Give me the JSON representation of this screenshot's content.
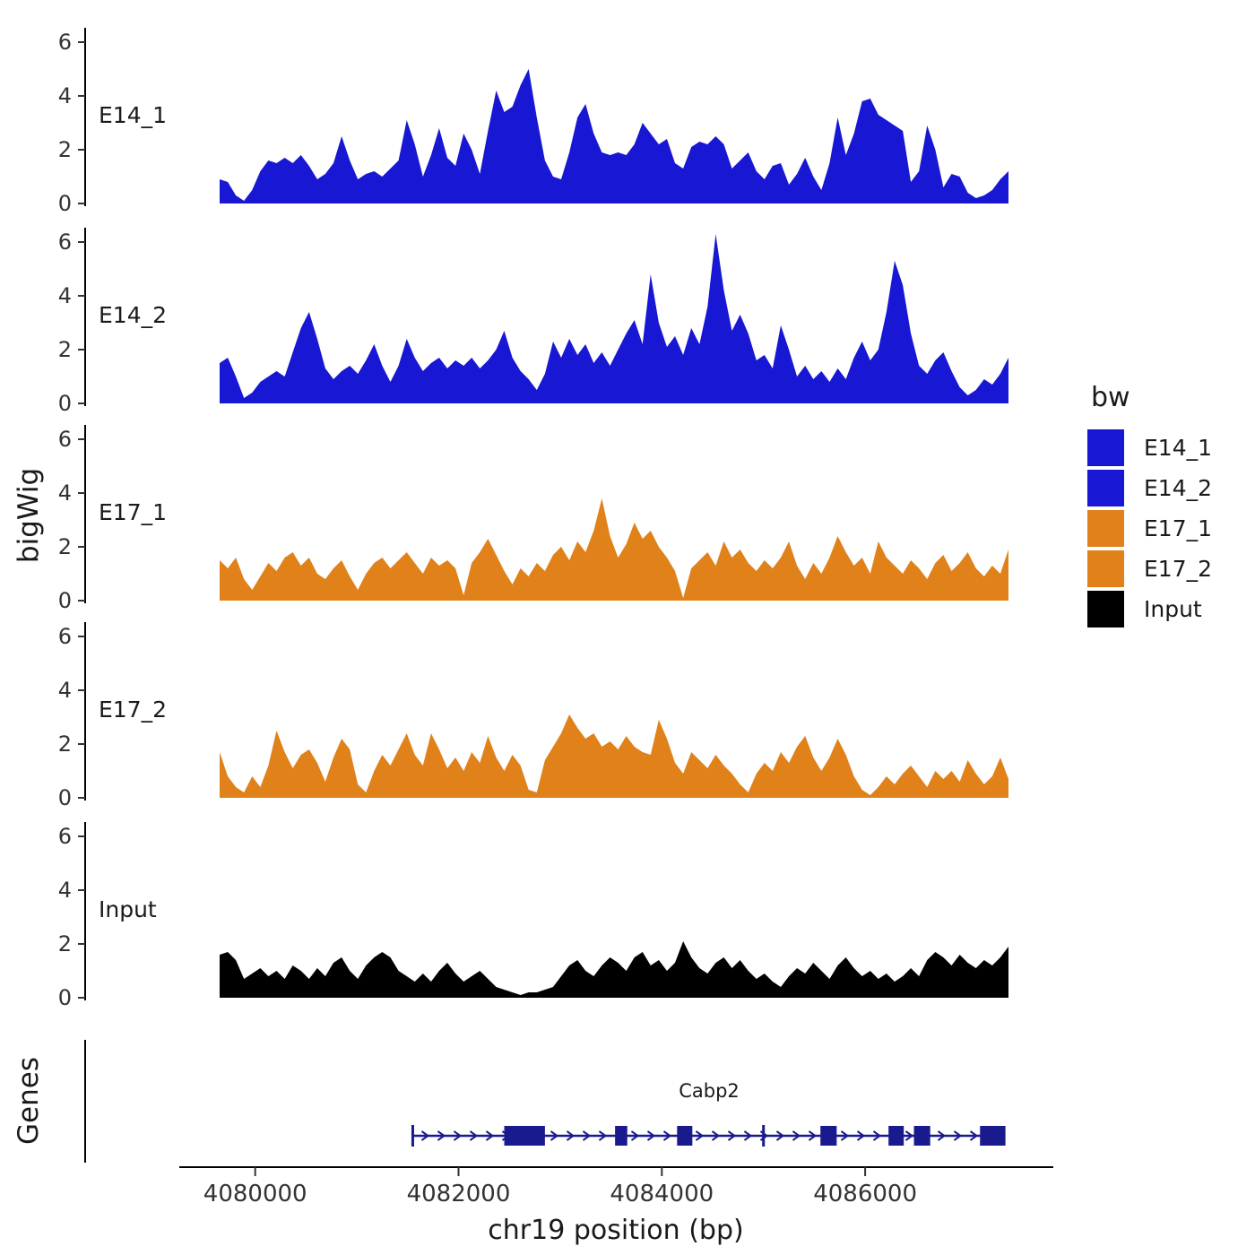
{
  "figure": {
    "background": "#ffffff",
    "colors": {
      "blue": "#1717d4",
      "orange": "#e0811a",
      "black": "#000000",
      "gene": "#1a1a8f",
      "axis": "#000000",
      "tick_text": "#333333"
    }
  },
  "chart_data": {
    "type": "area",
    "title": "",
    "xlabel": "chr19 position (bp)",
    "ylabel": "bigWig",
    "genes_label": "Genes",
    "x_start": 4079650,
    "x_step": 80,
    "x_ticks": [
      4080000,
      4082000,
      4084000,
      4086000
    ],
    "y_ticks": [
      0,
      2,
      4,
      6
    ],
    "ylim": [
      0,
      6.5
    ],
    "legend": {
      "title": "bw",
      "entries": [
        {
          "label": "E14_1",
          "color": "#1717d4"
        },
        {
          "label": "E14_2",
          "color": "#1717d4"
        },
        {
          "label": "E17_1",
          "color": "#e0811a"
        },
        {
          "label": "E17_2",
          "color": "#e0811a"
        },
        {
          "label": "Input",
          "color": "#000000"
        }
      ]
    },
    "series": [
      {
        "name": "E14_1",
        "color": "#1717d4",
        "values": [
          0.9,
          0.8,
          0.3,
          0.1,
          0.5,
          1.2,
          1.6,
          1.5,
          1.7,
          1.5,
          1.8,
          1.4,
          0.9,
          1.1,
          1.5,
          2.5,
          1.6,
          0.9,
          1.1,
          1.2,
          1.0,
          1.3,
          1.6,
          3.1,
          2.2,
          1.0,
          1.8,
          2.8,
          1.7,
          1.4,
          2.6,
          2.0,
          1.1,
          2.7,
          4.2,
          3.4,
          3.6,
          4.4,
          5.0,
          3.2,
          1.6,
          1.0,
          0.9,
          1.9,
          3.2,
          3.7,
          2.6,
          1.9,
          1.8,
          1.9,
          1.8,
          2.2,
          3.0,
          2.6,
          2.2,
          2.4,
          1.5,
          1.3,
          2.1,
          2.3,
          2.2,
          2.5,
          2.2,
          1.3,
          1.6,
          1.9,
          1.2,
          0.9,
          1.4,
          1.5,
          0.7,
          1.1,
          1.7,
          1.0,
          0.5,
          1.5,
          3.2,
          1.8,
          2.6,
          3.8,
          3.9,
          3.3,
          3.1,
          2.9,
          2.7,
          0.8,
          1.2,
          2.9,
          2.0,
          0.6,
          1.1,
          1.0,
          0.4,
          0.2,
          0.3,
          0.5,
          0.9,
          1.2
        ]
      },
      {
        "name": "E14_2",
        "color": "#1717d4",
        "values": [
          1.5,
          1.7,
          1.0,
          0.2,
          0.4,
          0.8,
          1.0,
          1.2,
          1.0,
          1.9,
          2.8,
          3.4,
          2.4,
          1.3,
          0.9,
          1.2,
          1.4,
          1.1,
          1.6,
          2.2,
          1.4,
          0.8,
          1.4,
          2.4,
          1.7,
          1.2,
          1.5,
          1.7,
          1.3,
          1.6,
          1.4,
          1.7,
          1.3,
          1.6,
          2.0,
          2.7,
          1.7,
          1.2,
          0.9,
          0.5,
          1.1,
          2.3,
          1.7,
          2.4,
          1.8,
          2.2,
          1.5,
          1.9,
          1.4,
          2.0,
          2.6,
          3.1,
          2.2,
          4.8,
          3.0,
          2.1,
          2.5,
          1.8,
          2.8,
          2.2,
          3.6,
          6.3,
          4.2,
          2.7,
          3.3,
          2.6,
          1.6,
          1.8,
          1.3,
          2.9,
          2.0,
          1.0,
          1.4,
          0.9,
          1.2,
          0.8,
          1.3,
          0.9,
          1.7,
          2.3,
          1.6,
          2.0,
          3.4,
          5.3,
          4.4,
          2.6,
          1.4,
          1.1,
          1.6,
          1.9,
          1.2,
          0.6,
          0.3,
          0.5,
          0.9,
          0.7,
          1.1,
          1.7
        ]
      },
      {
        "name": "E17_1",
        "color": "#e0811a",
        "values": [
          1.5,
          1.2,
          1.6,
          0.8,
          0.4,
          0.9,
          1.4,
          1.1,
          1.6,
          1.8,
          1.3,
          1.6,
          1.0,
          0.8,
          1.2,
          1.5,
          0.9,
          0.4,
          1.0,
          1.4,
          1.6,
          1.2,
          1.5,
          1.8,
          1.4,
          1.0,
          1.6,
          1.3,
          1.5,
          1.2,
          0.2,
          1.4,
          1.8,
          2.3,
          1.7,
          1.1,
          0.6,
          1.2,
          0.9,
          1.4,
          1.1,
          1.7,
          2.0,
          1.5,
          2.2,
          1.8,
          2.6,
          3.8,
          2.4,
          1.6,
          2.1,
          2.9,
          2.3,
          2.6,
          2.0,
          1.6,
          1.1,
          0.1,
          1.2,
          1.5,
          1.8,
          1.3,
          2.2,
          1.6,
          1.9,
          1.4,
          1.1,
          1.5,
          1.2,
          1.6,
          2.2,
          1.3,
          0.8,
          1.4,
          1.0,
          1.6,
          2.4,
          1.8,
          1.3,
          1.6,
          1.0,
          2.2,
          1.6,
          1.3,
          1.0,
          1.5,
          1.2,
          0.8,
          1.4,
          1.7,
          1.1,
          1.4,
          1.8,
          1.2,
          0.9,
          1.3,
          1.0,
          1.9
        ]
      },
      {
        "name": "E17_2",
        "color": "#e0811a",
        "values": [
          1.7,
          0.8,
          0.4,
          0.2,
          0.8,
          0.4,
          1.2,
          2.5,
          1.7,
          1.1,
          1.6,
          1.8,
          1.3,
          0.6,
          1.5,
          2.2,
          1.8,
          0.5,
          0.2,
          1.0,
          1.6,
          1.2,
          1.8,
          2.4,
          1.6,
          1.2,
          2.4,
          1.8,
          1.1,
          1.5,
          1.0,
          1.7,
          1.3,
          2.3,
          1.5,
          1.0,
          1.6,
          1.2,
          0.3,
          0.2,
          1.4,
          1.9,
          2.4,
          3.1,
          2.6,
          2.2,
          2.4,
          1.9,
          2.1,
          1.8,
          2.3,
          1.9,
          1.7,
          1.6,
          2.9,
          2.2,
          1.3,
          0.9,
          1.7,
          1.4,
          1.1,
          1.6,
          1.2,
          0.9,
          0.5,
          0.2,
          0.9,
          1.3,
          1.0,
          1.7,
          1.3,
          1.9,
          2.3,
          1.5,
          1.0,
          1.5,
          2.2,
          1.6,
          0.8,
          0.3,
          0.1,
          0.4,
          0.8,
          0.5,
          0.9,
          1.2,
          0.8,
          0.4,
          1.0,
          0.7,
          1.0,
          0.6,
          1.4,
          0.9,
          0.5,
          0.8,
          1.5,
          0.7
        ]
      },
      {
        "name": "Input",
        "color": "#000000",
        "values": [
          1.6,
          1.7,
          1.4,
          0.7,
          0.9,
          1.1,
          0.8,
          1.0,
          0.7,
          1.2,
          1.0,
          0.7,
          1.1,
          0.8,
          1.3,
          1.5,
          1.0,
          0.7,
          1.2,
          1.5,
          1.7,
          1.5,
          1.0,
          0.8,
          0.6,
          0.9,
          0.6,
          1.0,
          1.3,
          0.9,
          0.6,
          0.8,
          1.0,
          0.7,
          0.4,
          0.3,
          0.2,
          0.1,
          0.2,
          0.2,
          0.3,
          0.4,
          0.8,
          1.2,
          1.4,
          1.0,
          0.8,
          1.2,
          1.5,
          1.3,
          1.0,
          1.5,
          1.7,
          1.2,
          1.4,
          1.0,
          1.3,
          2.1,
          1.5,
          1.1,
          0.9,
          1.3,
          1.5,
          1.1,
          1.4,
          1.0,
          0.7,
          0.9,
          0.6,
          0.4,
          0.8,
          1.1,
          0.9,
          1.3,
          1.0,
          0.7,
          1.2,
          1.5,
          1.1,
          0.8,
          1.0,
          0.7,
          0.9,
          0.6,
          0.8,
          1.1,
          0.8,
          1.4,
          1.7,
          1.5,
          1.2,
          1.6,
          1.3,
          1.1,
          1.4,
          1.2,
          1.5,
          1.9
        ]
      }
    ],
    "gene_track": {
      "gene": {
        "name": "Cabp2",
        "start": 4081550,
        "end": 4087380,
        "strand": "+",
        "exons": [
          [
            4082450,
            4082850
          ],
          [
            4083540,
            4083660
          ],
          [
            4084150,
            4084300
          ],
          [
            4085560,
            4085720
          ],
          [
            4086230,
            4086380
          ],
          [
            4086480,
            4086640
          ],
          [
            4087130,
            4087380
          ]
        ],
        "boundary_ticks": [
          4081550,
          4085000
        ]
      }
    }
  }
}
